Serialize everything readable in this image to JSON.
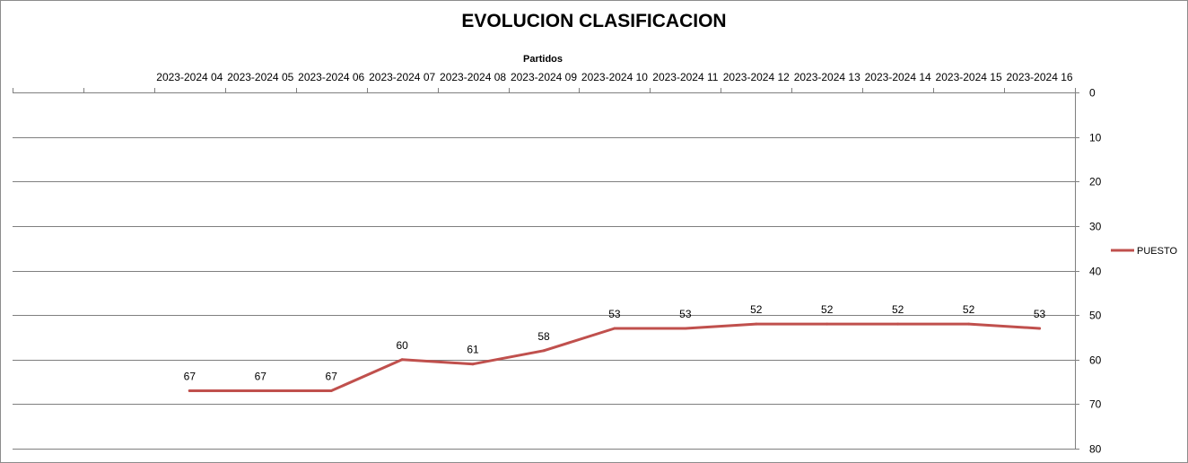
{
  "chart_data": {
    "type": "line",
    "title": "EVOLUCION CLASIFICACION",
    "xlabel": "Partidos",
    "ylabel": "",
    "x_axis_position": "top",
    "y_axis_position": "right",
    "y_inverted": true,
    "ylim": [
      0,
      80
    ],
    "yticks": [
      0,
      10,
      20,
      30,
      40,
      50,
      60,
      70,
      80
    ],
    "grid": true,
    "legend": "right",
    "categories": [
      "",
      "",
      "2023-2024 04",
      "2023-2024 05",
      "2023-2024 06",
      "2023-2024 07",
      "2023-2024 08",
      "2023-2024 09",
      "2023-2024 10",
      "2023-2024 11",
      "2023-2024 12",
      "2023-2024 13",
      "2023-2024 14",
      "2023-2024 15",
      "2023-2024 16"
    ],
    "series": [
      {
        "name": "PUESTO",
        "color": "#c0504d",
        "values": [
          null,
          null,
          67,
          67,
          67,
          60,
          61,
          58,
          53,
          53,
          52,
          52,
          52,
          52,
          53
        ]
      }
    ]
  }
}
